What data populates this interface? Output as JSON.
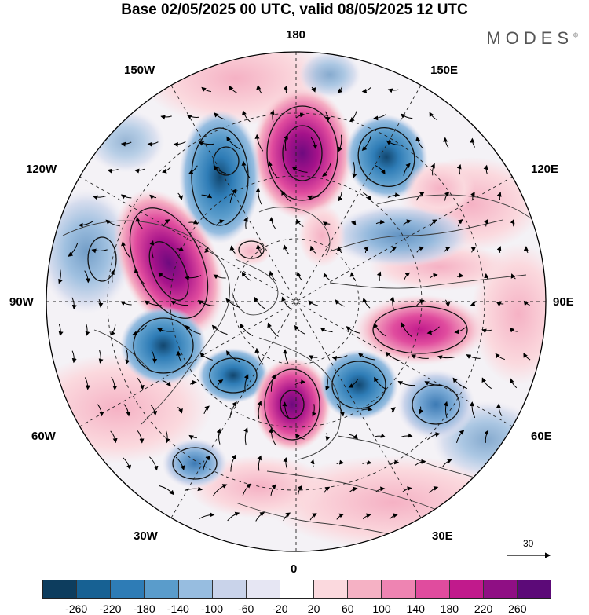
{
  "title": "Base 02/05/2025 00 UTC, valid 08/05/2025 12 UTC",
  "brand": "MODES",
  "brand_mark": "©",
  "map": {
    "projection": "north-polar-stereographic",
    "meridian_labels": {
      "top": "180",
      "bottom": "0",
      "left": "90W",
      "right": "90E",
      "upper_left_1": "150W",
      "upper_left_2": "120W",
      "upper_right_1": "150E",
      "upper_right_2": "120E",
      "lower_left_1": "60W",
      "lower_left_2": "30W",
      "lower_right_1": "60E",
      "lower_right_2": "30E"
    },
    "vector_reference": "30",
    "anomaly_centers": [
      {
        "type": "positive",
        "color": "#7a0b84",
        "lon": 180,
        "lat": 62
      },
      {
        "type": "negative",
        "color": "#1b6aa7",
        "lon": 145,
        "lat": 52
      },
      {
        "type": "negative",
        "color": "#2d73b0",
        "lon": -150,
        "lat": 50
      },
      {
        "type": "positive",
        "color": "#8a0d80",
        "lon": -105,
        "lat": 58
      },
      {
        "type": "negative",
        "color": "#1f5f95",
        "lon": -80,
        "lat": 55
      },
      {
        "type": "negative",
        "color": "#2b6fa8",
        "lon": -45,
        "lat": 60
      },
      {
        "type": "positive",
        "color": "#8b0f7e",
        "lon": -15,
        "lat": 63
      },
      {
        "type": "negative",
        "color": "#15406d",
        "lon": 20,
        "lat": 62
      },
      {
        "type": "negative",
        "color": "#4d8ac0",
        "lon": 50,
        "lat": 52
      },
      {
        "type": "positive",
        "color": "#c2218f",
        "lon": 85,
        "lat": 58
      },
      {
        "type": "negative",
        "color": "#3c7ab4",
        "lon": -45,
        "lat": 35
      }
    ]
  },
  "colorbar": {
    "colors": [
      "#0d3d5e",
      "#176193",
      "#2e7cb6",
      "#5a9ccb",
      "#97bde0",
      "#c9d3ea",
      "#e6e6f3",
      "#ffffff",
      "#fbd9de",
      "#f5b1c4",
      "#ee84b2",
      "#e04c9e",
      "#c11a8c",
      "#8f0f84",
      "#5c0a78"
    ],
    "tick_labels": [
      "-260",
      "-220",
      "-180",
      "-140",
      "-100",
      "-60",
      "-20",
      "20",
      "60",
      "100",
      "140",
      "180",
      "220",
      "260"
    ]
  }
}
